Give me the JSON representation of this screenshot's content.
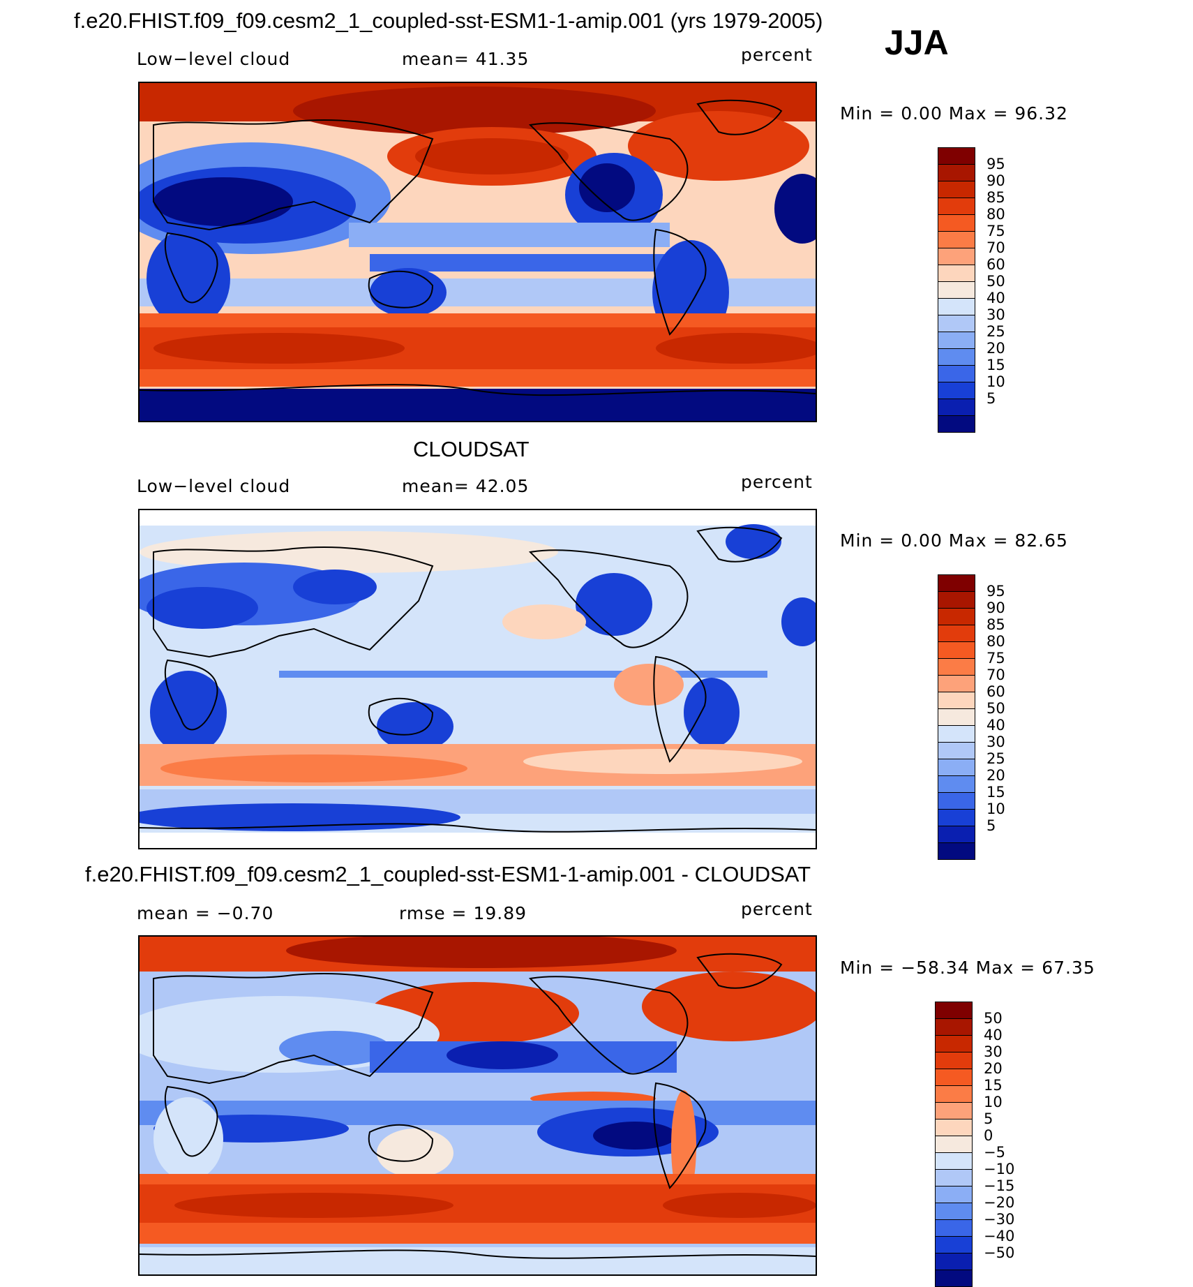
{
  "header": {
    "title": "f.e20.FHIST.f09_f09.cesm2_1_coupled-sst-ESM1-1-amip.001 (yrs 1979-2005)",
    "season": "JJA"
  },
  "panels": [
    {
      "id": "model",
      "title": "",
      "left_label": "Low−level cloud",
      "center_label": "mean=   41.35",
      "units": "percent",
      "minmax": "Min =    0.00 Max =   96.32",
      "colorbar": [
        "95",
        "90",
        "85",
        "80",
        "75",
        "70",
        "60",
        "50",
        "40",
        "30",
        "25",
        "20",
        "15",
        "10",
        "5"
      ],
      "colors": [
        "#7f0000",
        "#a81600",
        "#c82800",
        "#e23c0c",
        "#f55a22",
        "#fb7c46",
        "#fda27a",
        "#fdd6bd",
        "#f6e9de",
        "#d4e4fa",
        "#b0c8f7",
        "#8baef5",
        "#5f8cf0",
        "#3a66e8",
        "#1840d6",
        "#0a1fb0",
        "#020a80"
      ]
    },
    {
      "id": "obs",
      "title": "CLOUDSAT",
      "left_label": "Low−level cloud",
      "center_label": "mean=   42.05",
      "units": "percent",
      "minmax": "Min =    0.00 Max =   82.65",
      "colorbar": [
        "95",
        "90",
        "85",
        "80",
        "75",
        "70",
        "60",
        "50",
        "40",
        "30",
        "25",
        "20",
        "15",
        "10",
        "5"
      ],
      "colors": [
        "#7f0000",
        "#a81600",
        "#c82800",
        "#e23c0c",
        "#f55a22",
        "#fb7c46",
        "#fda27a",
        "#fdd6bd",
        "#f6e9de",
        "#d4e4fa",
        "#b0c8f7",
        "#8baef5",
        "#5f8cf0",
        "#3a66e8",
        "#1840d6",
        "#0a1fb0",
        "#020a80"
      ]
    },
    {
      "id": "diff",
      "title": "f.e20.FHIST.f09_f09.cesm2_1_coupled-sst-ESM1-1-amip.001 - CLOUDSAT",
      "left_label": "mean =   −0.70",
      "center_label": "rmse =   19.89",
      "units": "percent",
      "minmax": "Min = −58.34 Max =   67.35",
      "colorbar": [
        "50",
        "40",
        "30",
        "20",
        "15",
        "10",
        "5",
        "0",
        "−5",
        "−10",
        "−15",
        "−20",
        "−30",
        "−40",
        "−50"
      ],
      "colors": [
        "#7f0000",
        "#a81600",
        "#c82800",
        "#e23c0c",
        "#f55a22",
        "#fb7c46",
        "#fda27a",
        "#fdd6bd",
        "#f6e9de",
        "#d4e4fa",
        "#b0c8f7",
        "#8baef5",
        "#5f8cf0",
        "#3a66e8",
        "#1840d6",
        "#0a1fb0",
        "#020a80"
      ]
    }
  ]
}
